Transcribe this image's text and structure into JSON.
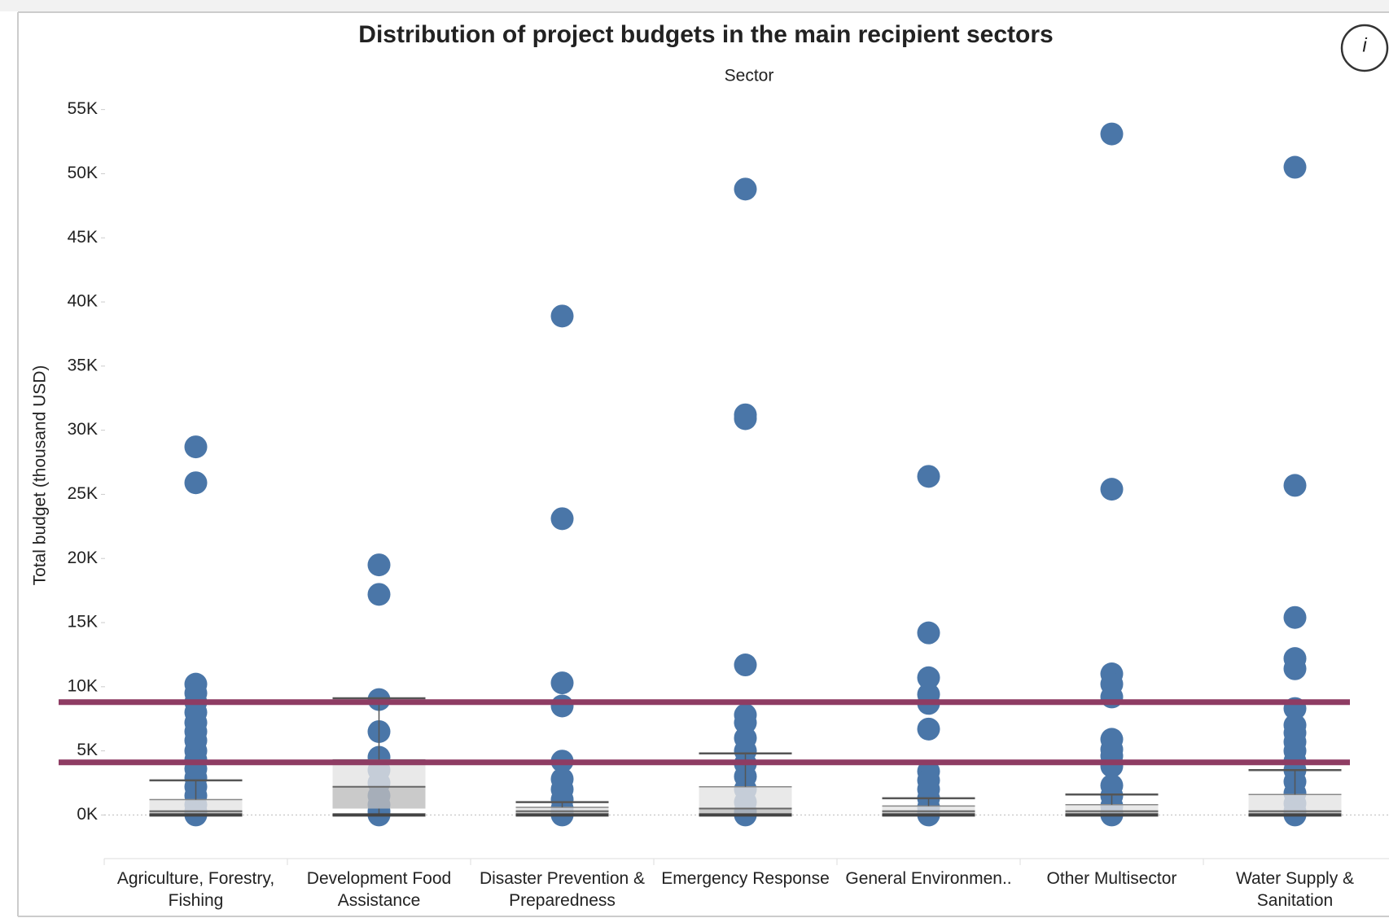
{
  "chart_data": {
    "type": "box",
    "title": "Distribution of project budgets in the main recipient sectors",
    "column_header": "Sector",
    "y_label": "Total budget (thousand USD)",
    "info_icon": "i",
    "categories": [
      "Agriculture, Forestry, Fishing",
      "Development Food Assistance",
      "Disaster Prevention & Preparedness",
      "Emergency Response",
      "General Environmen..",
      "Other Multisector",
      "Water Supply & Sanitation"
    ],
    "points": [
      [
        28700,
        25900,
        10200,
        9500,
        8800,
        8000,
        7200,
        6500,
        5800,
        5000,
        4300,
        3600,
        2900,
        2200,
        1500,
        800,
        300,
        100,
        0
      ],
      [
        19500,
        17200,
        9000,
        6500,
        4500,
        3500,
        2500,
        1500,
        800,
        300,
        0
      ],
      [
        38900,
        23100,
        10300,
        8500,
        4200,
        2800,
        2000,
        1200,
        500,
        200,
        0
      ],
      [
        48800,
        31200,
        30900,
        11700,
        7800,
        7200,
        6000,
        5000,
        4000,
        3000,
        2000,
        1000,
        300,
        0
      ],
      [
        26400,
        14200,
        10700,
        9400,
        8700,
        6700,
        3400,
        2700,
        2000,
        1300,
        600,
        200,
        0
      ],
      [
        53100,
        25400,
        11000,
        10200,
        9200,
        5900,
        5100,
        4600,
        3800,
        2300,
        1500,
        700,
        200,
        0
      ],
      [
        50500,
        25700,
        15400,
        12200,
        11400,
        8300,
        7000,
        6400,
        5700,
        5000,
        4200,
        3500,
        2600,
        1700,
        900,
        300,
        0
      ]
    ],
    "boxes": [
      {
        "low": 0,
        "q1": 100,
        "median": 300,
        "q3": 1200,
        "high": 2700
      },
      {
        "low": 0,
        "q1": 500,
        "median": 2200,
        "q3": 4300,
        "high": 9100
      },
      {
        "low": 0,
        "q1": 100,
        "median": 300,
        "q3": 600,
        "high": 1000
      },
      {
        "low": 0,
        "q1": 100,
        "median": 500,
        "q3": 2200,
        "high": 4800
      },
      {
        "low": 0,
        "q1": 100,
        "median": 300,
        "q3": 700,
        "high": 1300
      },
      {
        "low": 0,
        "q1": 100,
        "median": 300,
        "q3": 800,
        "high": 1600
      },
      {
        "low": 0,
        "q1": 100,
        "median": 300,
        "q3": 1600,
        "high": 3500
      }
    ],
    "reference_lines": [
      8800,
      4100
    ],
    "reference_color": "#8e3c63",
    "color": "#4a76a8",
    "ylim": [
      -3400,
      56500
    ],
    "yticks": [
      {
        "value": 0,
        "label": "0K"
      },
      {
        "value": 5000,
        "label": "5K"
      },
      {
        "value": 10000,
        "label": "10K"
      },
      {
        "value": 15000,
        "label": "15K"
      },
      {
        "value": 20000,
        "label": "20K"
      },
      {
        "value": 25000,
        "label": "25K"
      },
      {
        "value": 30000,
        "label": "30K"
      },
      {
        "value": 35000,
        "label": "35K"
      },
      {
        "value": 40000,
        "label": "40K"
      },
      {
        "value": 45000,
        "label": "45K"
      },
      {
        "value": 50000,
        "label": "50K"
      },
      {
        "value": 55000,
        "label": "55K"
      }
    ]
  }
}
